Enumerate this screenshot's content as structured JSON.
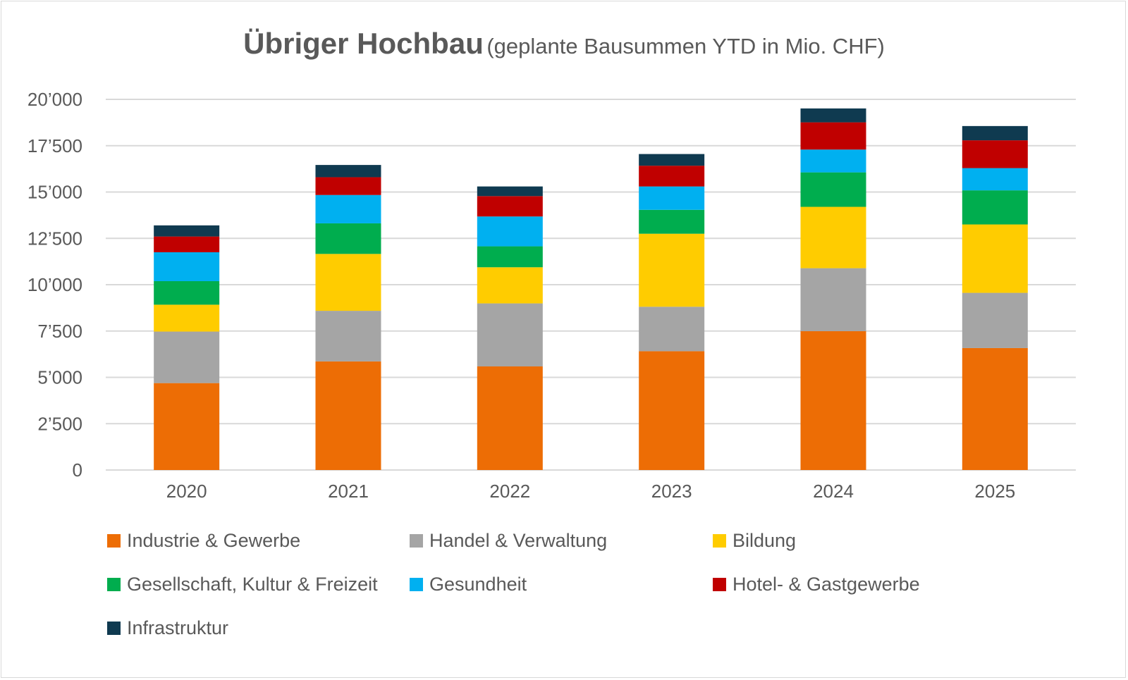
{
  "chart_data": {
    "type": "bar",
    "stacked": true,
    "title": "Übriger Hochbau",
    "subtitle": "(geplante Bausummen YTD in Mio. CHF)",
    "xlabel": "",
    "ylabel": "",
    "categories": [
      "2020",
      "2021",
      "2022",
      "2023",
      "2024",
      "2025"
    ],
    "ylim": [
      0,
      20000
    ],
    "yticks": [
      0,
      2500,
      5000,
      7500,
      10000,
      12500,
      15000,
      17500,
      20000
    ],
    "ytick_labels": [
      "0",
      "2’500",
      "5’000",
      "7’500",
      "10’000",
      "12’500",
      "15’000",
      "17’500",
      "20’000"
    ],
    "grid": true,
    "legend_position": "bottom",
    "series": [
      {
        "name": "Industrie & Gewerbe",
        "color": "#ED6D05",
        "values": [
          4690,
          5860,
          5590,
          6410,
          7490,
          6580
        ]
      },
      {
        "name": "Handel & Verwaltung",
        "color": "#A5A5A5",
        "values": [
          2780,
          2730,
          3400,
          2400,
          3400,
          2980
        ]
      },
      {
        "name": "Bildung",
        "color": "#FFCC00",
        "values": [
          1450,
          3070,
          1950,
          3940,
          3310,
          3690
        ]
      },
      {
        "name": "Gesellschaft, Kultur & Freizeit",
        "color": "#00AD4E",
        "values": [
          1270,
          1650,
          1130,
          1290,
          1860,
          1840
        ]
      },
      {
        "name": "Gesundheit",
        "color": "#00B0F0",
        "values": [
          1560,
          1530,
          1610,
          1260,
          1230,
          1200
        ]
      },
      {
        "name": "Hotel- & Gastgewerbe",
        "color": "#C00000",
        "values": [
          850,
          960,
          1100,
          1120,
          1470,
          1500
        ]
      },
      {
        "name": "Infrastruktur",
        "color": "#0F3A50",
        "values": [
          600,
          660,
          520,
          630,
          750,
          770
        ]
      }
    ]
  }
}
